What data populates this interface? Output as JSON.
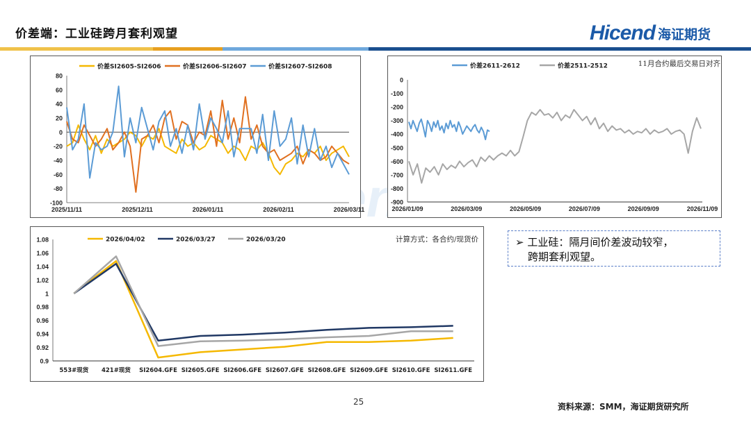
{
  "page": {
    "title": "价差端：工业硅跨月套利观望",
    "logo_text": "Hicend",
    "logo_cn": "海证期货",
    "page_number": "25",
    "source": "资料来源：SMM，海证期货研究所",
    "watermark": "Hicend"
  },
  "colors": {
    "brand_blue": "#1b5aa8",
    "band_yellow": "#f0c24a",
    "band_orange": "#e8a020",
    "band_blue": "#1b4f8f",
    "series_yellow": "#f5b800",
    "series_orange": "#e07020",
    "series_blue": "#5b9bd5",
    "series_gray": "#a6a6a6",
    "series_navy": "#203864"
  },
  "side_note": {
    "bullet_text": "➢ 工业硅：隔月间价差波动较窄，",
    "line2": "跨期套利观望。"
  },
  "chart_data": [
    {
      "type": "line",
      "series": [
        {
          "name": "价差SI2605-SI2606",
          "values": [
            -20,
            -15,
            10,
            -10,
            -25,
            -5,
            -30,
            -10,
            -20,
            -15,
            -10,
            0,
            -5,
            -20,
            -5,
            -10,
            5,
            -20,
            -25,
            -30,
            -10,
            -20,
            -15,
            -25,
            -20,
            -5,
            -10,
            -15,
            -30,
            -20,
            -25,
            -40,
            -20,
            -25,
            -15,
            -30,
            -50,
            -60,
            -45,
            -40,
            -30,
            -35,
            -25,
            -30,
            -20,
            -40,
            -30,
            -25,
            -20,
            -35
          ]
        },
        {
          "name": "价差SI2606-SI2607",
          "values": [
            15,
            -10,
            -15,
            10,
            -5,
            -20,
            -10,
            5,
            -25,
            -15,
            0,
            -20,
            -85,
            -10,
            -5,
            10,
            -15,
            20,
            30,
            -10,
            15,
            10,
            -15,
            0,
            -5,
            30,
            -20,
            45,
            -10,
            20,
            -15,
            50,
            -10,
            10,
            -20,
            -30,
            -25,
            -40,
            -35,
            -30,
            -20,
            -45,
            -25,
            -30,
            -40,
            -35,
            -20,
            -30,
            -40,
            -45
          ]
        },
        {
          "name": "价差SI2607-SI2608",
          "values": [
            35,
            -25,
            -10,
            40,
            -65,
            -15,
            -25,
            -20,
            0,
            65,
            -35,
            20,
            -15,
            35,
            5,
            -25,
            15,
            30,
            -20,
            5,
            -30,
            10,
            -25,
            40,
            -10,
            20,
            5,
            -15,
            30,
            -35,
            5,
            5,
            5,
            -30,
            25,
            -40,
            30,
            -20,
            -10,
            20,
            -45,
            10,
            -35,
            5,
            -40,
            -20,
            -50,
            -30,
            -45,
            -60
          ]
        }
      ],
      "x_tick_labels": [
        "2025/11/11",
        "2025/12/11",
        "2026/01/11",
        "2026/02/11",
        "2026/03/11"
      ],
      "y_tick_labels": [
        "80",
        "60",
        "40",
        "20",
        "0",
        "-20",
        "-40",
        "-60",
        "-80",
        "-100"
      ],
      "ylim": [
        -100,
        80
      ]
    },
    {
      "type": "line",
      "series": [
        {
          "name": "价差2611-2612",
          "values": [
            -310,
            -360,
            -300,
            -340,
            -380,
            -320,
            -290,
            -350,
            -420,
            -300,
            -330,
            -380,
            -310,
            -350,
            -300,
            -370,
            -340,
            -390,
            -320,
            -360,
            -300,
            -350,
            -330,
            -380,
            -310,
            -350,
            -400,
            -370,
            -340,
            -360,
            -380,
            -350,
            -330,
            -370,
            -390,
            -350,
            -380,
            -440,
            -370,
            -380
          ]
        },
        {
          "name": "价差2511-2512",
          "values": [
            -600,
            -700,
            -620,
            -760,
            -650,
            -680,
            -640,
            -700,
            -620,
            -660,
            -630,
            -650,
            -600,
            -640,
            -610,
            -590,
            -640,
            -570,
            -600,
            -560,
            -590,
            -560,
            -540,
            -560,
            -520,
            -560,
            -530,
            -420,
            -300,
            -240,
            -260,
            -220,
            -260,
            -250,
            -280,
            -240,
            -300,
            -260,
            -280,
            -220,
            -260,
            -300,
            -270,
            -330,
            -280,
            -360,
            -320,
            -380,
            -340,
            -370,
            -360,
            -390,
            -370,
            -400,
            -380,
            -390,
            -360,
            -400,
            -370,
            -390,
            -380,
            -360,
            -400,
            -380,
            -370,
            -400,
            -540,
            -380,
            -280,
            -360
          ]
        }
      ],
      "x_tick_labels": [
        "2026/01/09",
        "2026/03/09",
        "2026/05/09",
        "2026/07/09",
        "2026/09/09",
        "2026/11/09"
      ],
      "y_tick_labels": [
        "0",
        "-100",
        "-200",
        "-300",
        "-400",
        "-500",
        "-600",
        "-700",
        "-800",
        "-900"
      ],
      "ylim": [
        -900,
        0
      ],
      "note": "11月合约最后交易日对齐"
    },
    {
      "type": "line",
      "categories": [
        "553#现货",
        "421#现货",
        "SI2604.GFE",
        "SI2605.GFE",
        "SI2606.GFE",
        "SI2607.GFE",
        "SI2608.GFE",
        "SI2609.GFE",
        "SI2610.GFE",
        "SI2611.GFE"
      ],
      "series": [
        {
          "name": "2026/04/02",
          "values": [
            1.0,
            1.048,
            0.905,
            0.913,
            0.917,
            0.921,
            0.928,
            0.928,
            0.93,
            0.934
          ]
        },
        {
          "name": "2026/03/27",
          "values": [
            1.0,
            1.044,
            0.93,
            0.937,
            0.939,
            0.942,
            0.946,
            0.949,
            0.95,
            0.952
          ]
        },
        {
          "name": "2026/03/20",
          "values": [
            1.0,
            1.055,
            0.922,
            0.929,
            0.93,
            0.932,
            0.935,
            0.937,
            0.944,
            0.944
          ]
        }
      ],
      "y_tick_labels": [
        "1.08",
        "1.06",
        "1.04",
        "1.02",
        "1",
        "0.98",
        "0.96",
        "0.94",
        "0.92",
        "0.9"
      ],
      "ylim": [
        0.9,
        1.08
      ],
      "note": "计算方式：各合约/现货价"
    }
  ]
}
